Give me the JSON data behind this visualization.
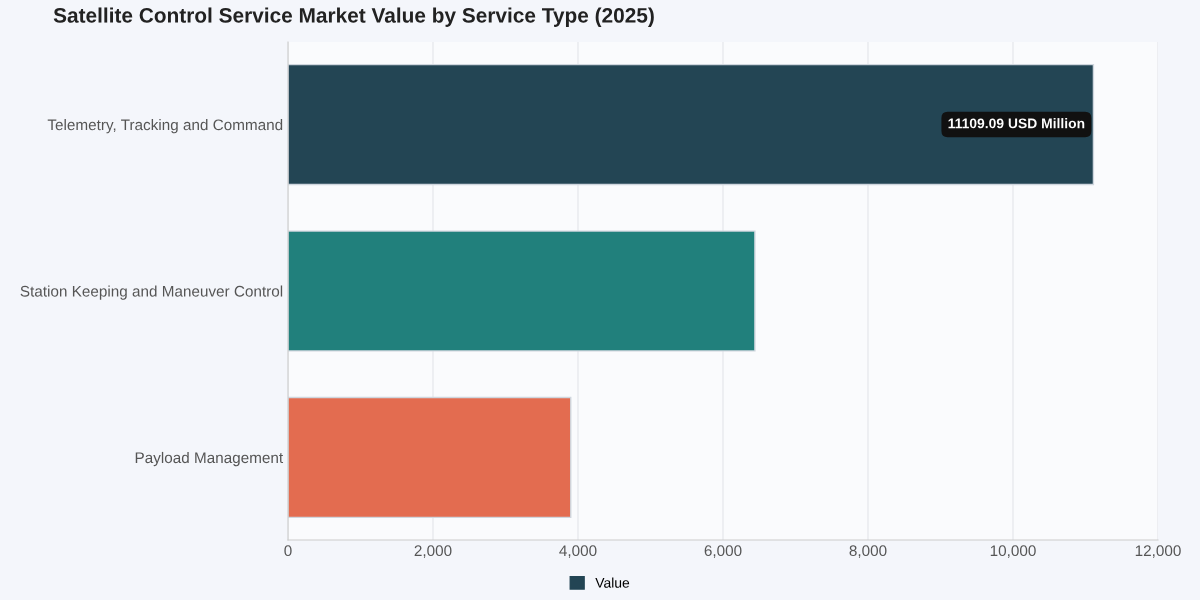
{
  "chart_data": {
    "type": "bar",
    "orientation": "horizontal",
    "title": "Satellite Control Service Market Value by Service Type (2025)",
    "categories": [
      "Telemetry, Tracking and Command",
      "Station Keeping and Maneuver Control",
      "Payload Management"
    ],
    "series": [
      {
        "name": "Value",
        "color": "#234554",
        "colors": [
          "#234554",
          "#21807c",
          "#e36c50"
        ],
        "values": [
          11109.09,
          6440,
          3900
        ]
      }
    ],
    "xlim": [
      0,
      12000
    ],
    "xticks": [
      {
        "value": 0,
        "label": "0"
      },
      {
        "value": 2000,
        "label": "2,000"
      },
      {
        "value": 4000,
        "label": "4,000"
      },
      {
        "value": 6000,
        "label": "6,000"
      },
      {
        "value": 8000,
        "label": "8,000"
      },
      {
        "value": 10000,
        "label": "10,000"
      },
      {
        "value": 12000,
        "label": "12,000"
      }
    ],
    "grid": "x",
    "legend": "bottom",
    "annotations": [
      {
        "text": "11109.09 USD Million",
        "x": 11109.09,
        "y": "Telemetry, Tracking and Command"
      }
    ]
  }
}
